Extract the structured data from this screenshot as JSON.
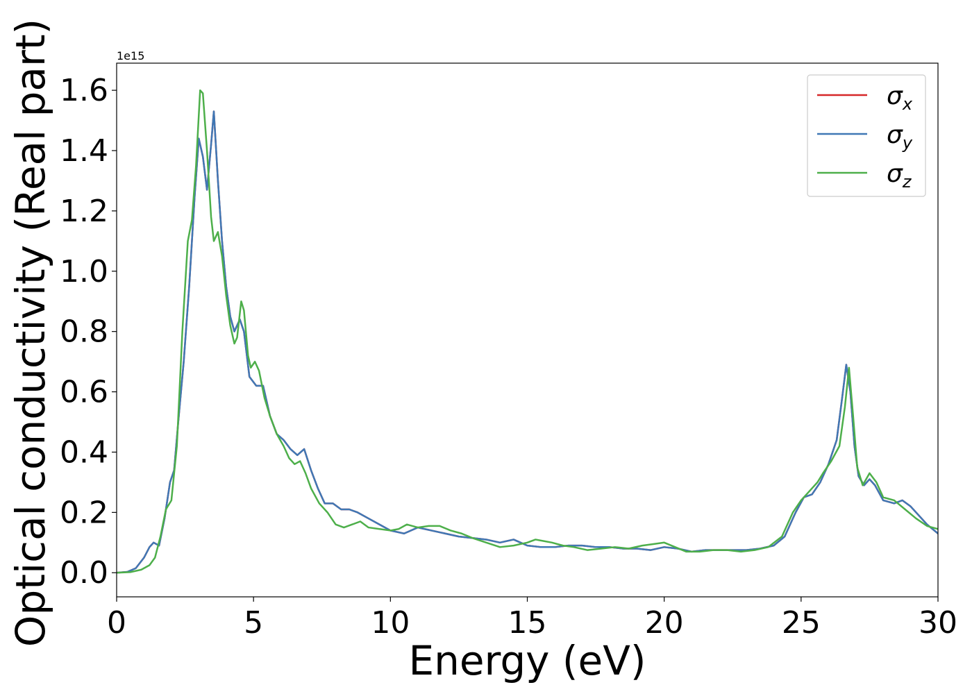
{
  "chart_data": {
    "type": "line",
    "title": "",
    "xlabel": "Energy (eV)",
    "ylabel": "Optical conductivity (Real part)",
    "y_offset_label": "1e15",
    "xlim": [
      0,
      30
    ],
    "ylim": [
      -0.08,
      1.69
    ],
    "xticks": [
      0,
      5,
      10,
      15,
      20,
      25,
      30
    ],
    "xtick_labels": [
      "0",
      "5",
      "10",
      "15",
      "20",
      "25",
      "30"
    ],
    "yticks": [
      0.0,
      0.2,
      0.4,
      0.6,
      0.8,
      1.0,
      1.2,
      1.4,
      1.6
    ],
    "ytick_labels": [
      "0.0",
      "0.2",
      "0.4",
      "0.6",
      "0.8",
      "1.0",
      "1.2",
      "1.4",
      "1.6"
    ],
    "grid": false,
    "legend_position": "top-right",
    "series": [
      {
        "name": "σx",
        "symbol": "σ",
        "subscript": "x",
        "color": "#d62728",
        "points": [
          [
            0,
            0
          ],
          [
            0.4,
            0.003
          ],
          [
            0.7,
            0.015
          ],
          [
            1.0,
            0.05
          ],
          [
            1.2,
            0.085
          ],
          [
            1.35,
            0.1
          ],
          [
            1.55,
            0.09
          ],
          [
            1.75,
            0.18
          ],
          [
            1.95,
            0.3
          ],
          [
            2.1,
            0.34
          ],
          [
            2.25,
            0.5
          ],
          [
            2.45,
            0.7
          ],
          [
            2.65,
            0.95
          ],
          [
            2.85,
            1.25
          ],
          [
            3.0,
            1.44
          ],
          [
            3.15,
            1.38
          ],
          [
            3.3,
            1.27
          ],
          [
            3.45,
            1.42
          ],
          [
            3.55,
            1.53
          ],
          [
            3.7,
            1.3
          ],
          [
            3.85,
            1.1
          ],
          [
            4.0,
            0.95
          ],
          [
            4.15,
            0.85
          ],
          [
            4.3,
            0.8
          ],
          [
            4.5,
            0.84
          ],
          [
            4.65,
            0.8
          ],
          [
            4.85,
            0.65
          ],
          [
            5.1,
            0.62
          ],
          [
            5.35,
            0.62
          ],
          [
            5.6,
            0.52
          ],
          [
            5.85,
            0.46
          ],
          [
            6.1,
            0.44
          ],
          [
            6.35,
            0.41
          ],
          [
            6.6,
            0.39
          ],
          [
            6.85,
            0.41
          ],
          [
            7.1,
            0.34
          ],
          [
            7.35,
            0.28
          ],
          [
            7.6,
            0.23
          ],
          [
            7.9,
            0.23
          ],
          [
            8.2,
            0.21
          ],
          [
            8.5,
            0.21
          ],
          [
            8.8,
            0.2
          ],
          [
            9.2,
            0.18
          ],
          [
            9.6,
            0.16
          ],
          [
            10.0,
            0.14
          ],
          [
            10.5,
            0.13
          ],
          [
            11.0,
            0.15
          ],
          [
            11.5,
            0.14
          ],
          [
            12.0,
            0.13
          ],
          [
            12.5,
            0.12
          ],
          [
            13.0,
            0.115
          ],
          [
            13.5,
            0.11
          ],
          [
            14.0,
            0.1
          ],
          [
            14.5,
            0.11
          ],
          [
            15.0,
            0.09
          ],
          [
            15.5,
            0.085
          ],
          [
            16.0,
            0.085
          ],
          [
            16.5,
            0.09
          ],
          [
            17.0,
            0.09
          ],
          [
            17.5,
            0.085
          ],
          [
            18.0,
            0.085
          ],
          [
            18.5,
            0.08
          ],
          [
            19.0,
            0.08
          ],
          [
            19.5,
            0.075
          ],
          [
            20.0,
            0.085
          ],
          [
            20.5,
            0.08
          ],
          [
            21.0,
            0.07
          ],
          [
            21.5,
            0.075
          ],
          [
            22.0,
            0.075
          ],
          [
            22.5,
            0.075
          ],
          [
            23.0,
            0.075
          ],
          [
            23.5,
            0.08
          ],
          [
            24.0,
            0.09
          ],
          [
            24.4,
            0.12
          ],
          [
            24.8,
            0.2
          ],
          [
            25.1,
            0.25
          ],
          [
            25.4,
            0.26
          ],
          [
            25.7,
            0.3
          ],
          [
            26.0,
            0.36
          ],
          [
            26.3,
            0.44
          ],
          [
            26.5,
            0.58
          ],
          [
            26.65,
            0.69
          ],
          [
            26.8,
            0.6
          ],
          [
            26.95,
            0.42
          ],
          [
            27.1,
            0.32
          ],
          [
            27.3,
            0.29
          ],
          [
            27.5,
            0.31
          ],
          [
            27.7,
            0.29
          ],
          [
            28.0,
            0.24
          ],
          [
            28.4,
            0.23
          ],
          [
            28.7,
            0.24
          ],
          [
            29.0,
            0.22
          ],
          [
            29.3,
            0.19
          ],
          [
            29.6,
            0.16
          ],
          [
            30.0,
            0.13
          ]
        ]
      },
      {
        "name": "σy",
        "symbol": "σ",
        "subscript": "y",
        "color": "#3f78b5",
        "points": [
          [
            0,
            0
          ],
          [
            0.4,
            0.003
          ],
          [
            0.7,
            0.015
          ],
          [
            1.0,
            0.05
          ],
          [
            1.2,
            0.085
          ],
          [
            1.35,
            0.1
          ],
          [
            1.55,
            0.09
          ],
          [
            1.75,
            0.18
          ],
          [
            1.95,
            0.3
          ],
          [
            2.1,
            0.34
          ],
          [
            2.25,
            0.5
          ],
          [
            2.45,
            0.7
          ],
          [
            2.65,
            0.95
          ],
          [
            2.85,
            1.25
          ],
          [
            3.0,
            1.44
          ],
          [
            3.15,
            1.38
          ],
          [
            3.3,
            1.27
          ],
          [
            3.45,
            1.42
          ],
          [
            3.55,
            1.53
          ],
          [
            3.7,
            1.3
          ],
          [
            3.85,
            1.1
          ],
          [
            4.0,
            0.95
          ],
          [
            4.15,
            0.85
          ],
          [
            4.3,
            0.8
          ],
          [
            4.5,
            0.84
          ],
          [
            4.65,
            0.8
          ],
          [
            4.85,
            0.65
          ],
          [
            5.1,
            0.62
          ],
          [
            5.35,
            0.62
          ],
          [
            5.6,
            0.52
          ],
          [
            5.85,
            0.46
          ],
          [
            6.1,
            0.44
          ],
          [
            6.35,
            0.41
          ],
          [
            6.6,
            0.39
          ],
          [
            6.85,
            0.41
          ],
          [
            7.1,
            0.34
          ],
          [
            7.35,
            0.28
          ],
          [
            7.6,
            0.23
          ],
          [
            7.9,
            0.23
          ],
          [
            8.2,
            0.21
          ],
          [
            8.5,
            0.21
          ],
          [
            8.8,
            0.2
          ],
          [
            9.2,
            0.18
          ],
          [
            9.6,
            0.16
          ],
          [
            10.0,
            0.14
          ],
          [
            10.5,
            0.13
          ],
          [
            11.0,
            0.15
          ],
          [
            11.5,
            0.14
          ],
          [
            12.0,
            0.13
          ],
          [
            12.5,
            0.12
          ],
          [
            13.0,
            0.115
          ],
          [
            13.5,
            0.11
          ],
          [
            14.0,
            0.1
          ],
          [
            14.5,
            0.11
          ],
          [
            15.0,
            0.09
          ],
          [
            15.5,
            0.085
          ],
          [
            16.0,
            0.085
          ],
          [
            16.5,
            0.09
          ],
          [
            17.0,
            0.09
          ],
          [
            17.5,
            0.085
          ],
          [
            18.0,
            0.085
          ],
          [
            18.5,
            0.08
          ],
          [
            19.0,
            0.08
          ],
          [
            19.5,
            0.075
          ],
          [
            20.0,
            0.085
          ],
          [
            20.5,
            0.08
          ],
          [
            21.0,
            0.07
          ],
          [
            21.5,
            0.075
          ],
          [
            22.0,
            0.075
          ],
          [
            22.5,
            0.075
          ],
          [
            23.0,
            0.075
          ],
          [
            23.5,
            0.08
          ],
          [
            24.0,
            0.09
          ],
          [
            24.4,
            0.12
          ],
          [
            24.8,
            0.2
          ],
          [
            25.1,
            0.25
          ],
          [
            25.4,
            0.26
          ],
          [
            25.7,
            0.3
          ],
          [
            26.0,
            0.36
          ],
          [
            26.3,
            0.44
          ],
          [
            26.5,
            0.58
          ],
          [
            26.65,
            0.69
          ],
          [
            26.8,
            0.6
          ],
          [
            26.95,
            0.42
          ],
          [
            27.1,
            0.32
          ],
          [
            27.3,
            0.29
          ],
          [
            27.5,
            0.31
          ],
          [
            27.7,
            0.29
          ],
          [
            28.0,
            0.24
          ],
          [
            28.4,
            0.23
          ],
          [
            28.7,
            0.24
          ],
          [
            29.0,
            0.22
          ],
          [
            29.3,
            0.19
          ],
          [
            29.6,
            0.16
          ],
          [
            30.0,
            0.13
          ]
        ]
      },
      {
        "name": "σz",
        "symbol": "σ",
        "subscript": "z",
        "color": "#4daf4a",
        "points": [
          [
            0,
            0
          ],
          [
            0.5,
            0.002
          ],
          [
            0.9,
            0.01
          ],
          [
            1.2,
            0.025
          ],
          [
            1.4,
            0.05
          ],
          [
            1.6,
            0.12
          ],
          [
            1.8,
            0.21
          ],
          [
            2.0,
            0.24
          ],
          [
            2.2,
            0.42
          ],
          [
            2.4,
            0.8
          ],
          [
            2.6,
            1.1
          ],
          [
            2.75,
            1.17
          ],
          [
            2.9,
            1.35
          ],
          [
            3.05,
            1.6
          ],
          [
            3.15,
            1.59
          ],
          [
            3.3,
            1.4
          ],
          [
            3.45,
            1.18
          ],
          [
            3.55,
            1.1
          ],
          [
            3.7,
            1.13
          ],
          [
            3.85,
            1.05
          ],
          [
            4.0,
            0.92
          ],
          [
            4.15,
            0.82
          ],
          [
            4.3,
            0.76
          ],
          [
            4.4,
            0.78
          ],
          [
            4.55,
            0.9
          ],
          [
            4.65,
            0.87
          ],
          [
            4.8,
            0.72
          ],
          [
            4.9,
            0.68
          ],
          [
            5.05,
            0.7
          ],
          [
            5.2,
            0.67
          ],
          [
            5.4,
            0.58
          ],
          [
            5.6,
            0.52
          ],
          [
            5.85,
            0.46
          ],
          [
            6.1,
            0.42
          ],
          [
            6.3,
            0.38
          ],
          [
            6.5,
            0.36
          ],
          [
            6.7,
            0.37
          ],
          [
            6.9,
            0.33
          ],
          [
            7.1,
            0.28
          ],
          [
            7.4,
            0.23
          ],
          [
            7.7,
            0.2
          ],
          [
            8.0,
            0.16
          ],
          [
            8.3,
            0.15
          ],
          [
            8.6,
            0.16
          ],
          [
            8.9,
            0.17
          ],
          [
            9.2,
            0.15
          ],
          [
            9.6,
            0.145
          ],
          [
            10.0,
            0.14
          ],
          [
            10.3,
            0.145
          ],
          [
            10.6,
            0.16
          ],
          [
            11.0,
            0.15
          ],
          [
            11.4,
            0.155
          ],
          [
            11.8,
            0.155
          ],
          [
            12.2,
            0.14
          ],
          [
            12.6,
            0.13
          ],
          [
            13.0,
            0.115
          ],
          [
            13.5,
            0.1
          ],
          [
            14.0,
            0.085
          ],
          [
            14.5,
            0.09
          ],
          [
            15.0,
            0.1
          ],
          [
            15.3,
            0.11
          ],
          [
            15.6,
            0.105
          ],
          [
            15.9,
            0.1
          ],
          [
            16.3,
            0.09
          ],
          [
            16.7,
            0.085
          ],
          [
            17.2,
            0.075
          ],
          [
            17.7,
            0.08
          ],
          [
            18.2,
            0.085
          ],
          [
            18.7,
            0.08
          ],
          [
            19.2,
            0.09
          ],
          [
            19.6,
            0.095
          ],
          [
            20.0,
            0.1
          ],
          [
            20.4,
            0.085
          ],
          [
            20.8,
            0.07
          ],
          [
            21.3,
            0.07
          ],
          [
            21.8,
            0.075
          ],
          [
            22.3,
            0.075
          ],
          [
            22.8,
            0.07
          ],
          [
            23.3,
            0.075
          ],
          [
            23.8,
            0.085
          ],
          [
            24.3,
            0.12
          ],
          [
            24.7,
            0.2
          ],
          [
            25.0,
            0.24
          ],
          [
            25.3,
            0.27
          ],
          [
            25.6,
            0.3
          ],
          [
            25.8,
            0.33
          ],
          [
            26.1,
            0.37
          ],
          [
            26.4,
            0.42
          ],
          [
            26.6,
            0.55
          ],
          [
            26.75,
            0.68
          ],
          [
            26.9,
            0.52
          ],
          [
            27.05,
            0.35
          ],
          [
            27.25,
            0.29
          ],
          [
            27.5,
            0.33
          ],
          [
            27.75,
            0.3
          ],
          [
            28.0,
            0.25
          ],
          [
            28.4,
            0.24
          ],
          [
            28.8,
            0.21
          ],
          [
            29.2,
            0.18
          ],
          [
            29.6,
            0.155
          ],
          [
            30.0,
            0.145
          ]
        ]
      }
    ]
  }
}
